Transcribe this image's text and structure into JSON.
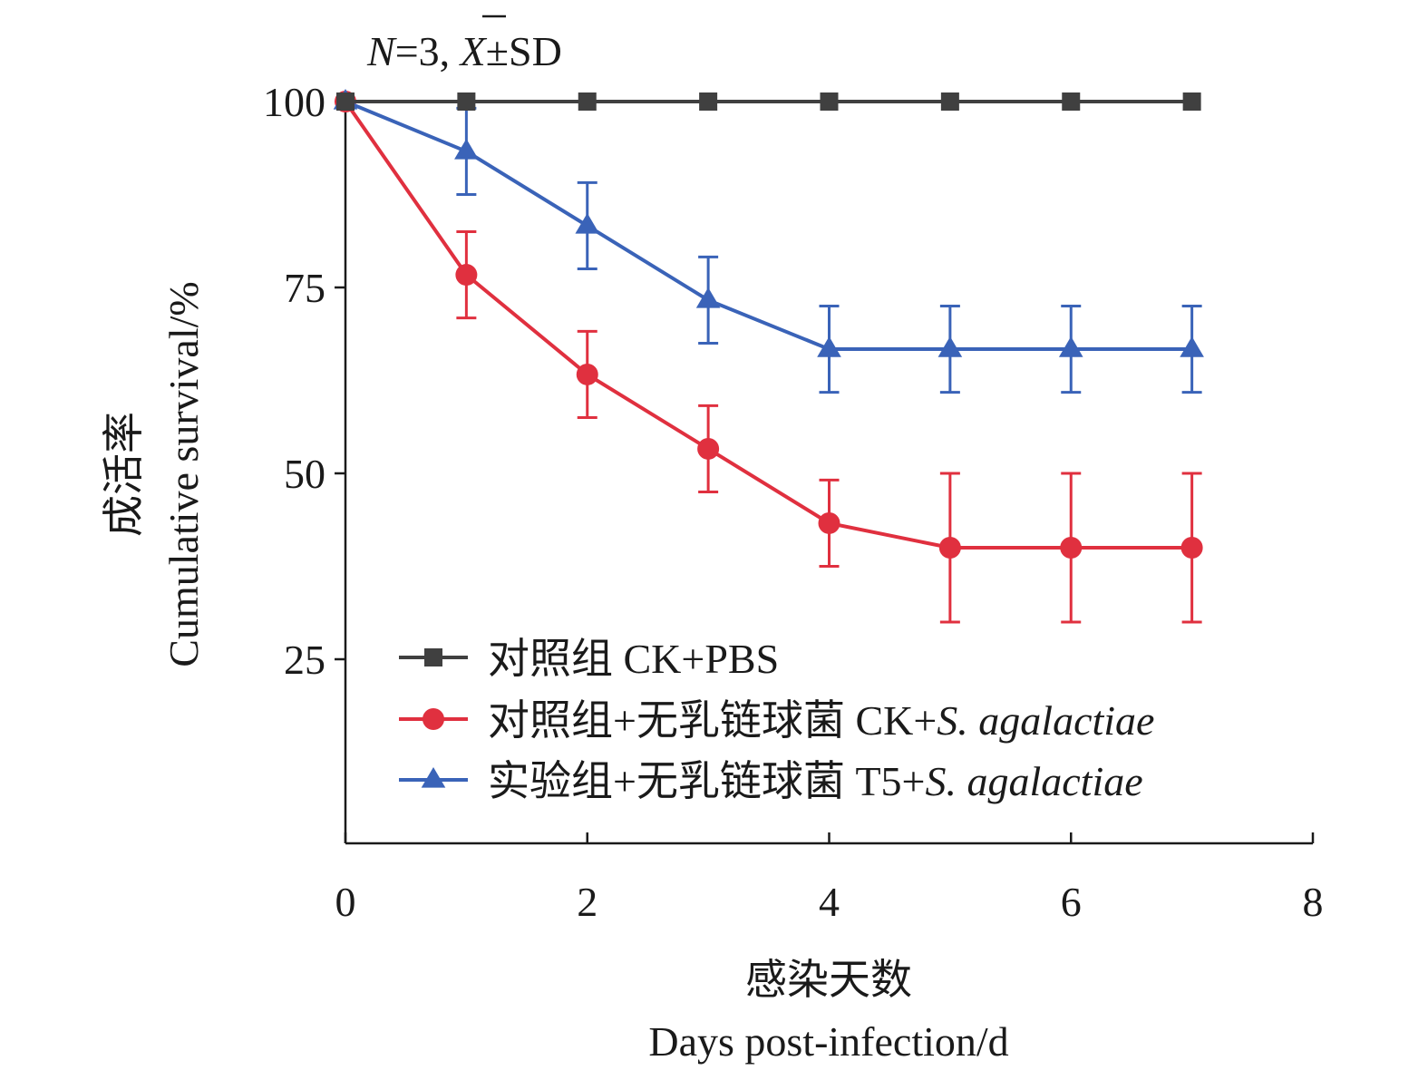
{
  "chart_data": {
    "type": "line",
    "annotation": {
      "n_part": "N",
      "eq_part": "=3, ",
      "mean_part": "X",
      "sd_part": "±SD"
    },
    "xlabel_cn": "感染天数",
    "xlabel_en": "Days post-infection/d",
    "ylabel_cn": "成活率",
    "ylabel_en": "Cumulative survival/%",
    "xlim": [
      0,
      8
    ],
    "ylim": [
      0,
      100
    ],
    "xticks": [
      "0",
      "2",
      "4",
      "6",
      "8"
    ],
    "yticks": [
      "25",
      "50",
      "75",
      "100"
    ],
    "x": [
      0,
      1,
      2,
      3,
      4,
      5,
      6,
      7
    ],
    "series": [
      {
        "name": "对照组 CK+PBS",
        "legend_plain": "对照组 CK+PBS",
        "legend_italic": "",
        "color": "#404040",
        "marker": "square",
        "values": [
          100,
          100,
          100,
          100,
          100,
          100,
          100,
          100
        ],
        "errors": [
          0,
          0,
          0,
          0,
          0,
          0,
          0,
          0
        ]
      },
      {
        "name": "对照组+无乳链球菌 CK+S. agalactiae",
        "legend_plain": "对照组+无乳链球菌 CK+",
        "legend_italic": "S. agalactiae",
        "color": "#e0303f",
        "marker": "circle",
        "values": [
          100,
          76.7,
          63.3,
          53.3,
          43.3,
          40,
          40,
          40
        ],
        "errors": [
          0,
          5.8,
          5.8,
          5.8,
          5.8,
          10,
          10,
          10
        ]
      },
      {
        "name": "实验组+无乳链球菌 T5+S. agalactiae",
        "legend_plain": "实验组+无乳链球菌 T5+",
        "legend_italic": "S. agalactiae",
        "color": "#3a63b8",
        "marker": "triangle",
        "values": [
          100,
          93.3,
          83.3,
          73.3,
          66.7,
          66.7,
          66.7,
          66.7
        ],
        "errors": [
          0,
          5.8,
          5.8,
          5.8,
          5.8,
          5.8,
          5.8,
          5.8
        ]
      }
    ],
    "legend_position": "lower-left"
  }
}
